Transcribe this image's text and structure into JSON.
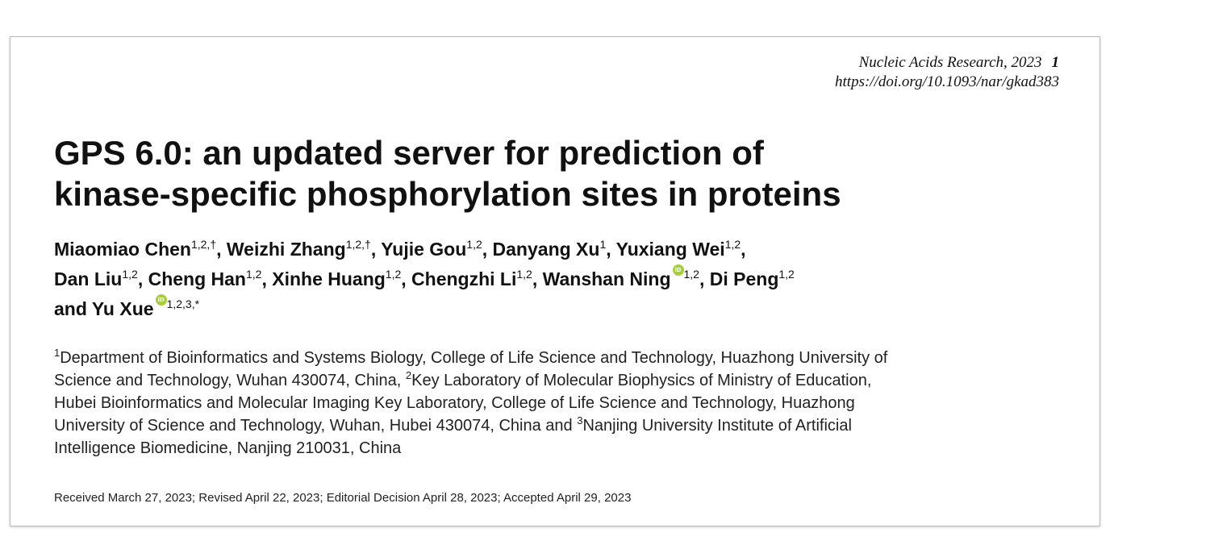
{
  "header": {
    "journal": "Nucleic Acids Research, 2023",
    "page_number": "1",
    "doi": "https://doi.org/10.1093/nar/gkad383"
  },
  "title": {
    "line1": "GPS 6.0: an updated server for prediction of",
    "line2": "kinase-specific phosphorylation sites in proteins"
  },
  "authors": [
    {
      "name": "Miaomiao Chen",
      "sup": "1,2,†",
      "sep": ", "
    },
    {
      "name": "Weizhi Zhang",
      "sup": "1,2,†",
      "sep": ", "
    },
    {
      "name": "Yujie Gou",
      "sup": "1,2",
      "sep": ", "
    },
    {
      "name": "Danyang Xu",
      "sup": "1",
      "sep": ", "
    },
    {
      "name": "Yuxiang Wei",
      "sup": "1,2",
      "sep": ","
    },
    {
      "name": "Dan Liu",
      "sup": "1,2",
      "sep": ", "
    },
    {
      "name": "Cheng Han",
      "sup": "1,2",
      "sep": ", "
    },
    {
      "name": "Xinhe Huang",
      "sup": "1,2",
      "sep": ", "
    },
    {
      "name": "Chengzhi Li",
      "sup": "1,2",
      "sep": ", "
    },
    {
      "name": "Wanshan Ning",
      "sup": "1,2",
      "sep": ", "
    },
    {
      "name": "Di Peng",
      "sup": "1,2",
      "sep": ""
    },
    {
      "name": "and Yu Xue",
      "sup": "1,2,3,*",
      "sep": ""
    }
  ],
  "affiliations": {
    "line1": {
      "sup1": "1",
      "text1": "Department of Bioinformatics and Systems Biology, College of Life Science and Technology, Huazhong University of"
    },
    "line2": {
      "text1": "Science and Technology, Wuhan 430074, China, ",
      "sup2": "2",
      "text2": "Key Laboratory of Molecular Biophysics of Ministry of Education,"
    },
    "line3": "Hubei Bioinformatics and Molecular Imaging Key Laboratory, College of Life Science and Technology, Huazhong",
    "line4": {
      "text1": "University of Science and Technology, Wuhan, Hubei 430074, China and ",
      "sup3": "3",
      "text2": "Nanjing University Institute of Artificial"
    },
    "line5": "Intelligence Biomedicine, Nanjing 210031, China"
  },
  "received": "Received March 27, 2023; Revised April 22, 2023; Editorial Decision April 28, 2023; Accepted April 29, 2023",
  "icons": {
    "orcid": "orcid-icon",
    "orcid_color": "#a6ce39"
  }
}
